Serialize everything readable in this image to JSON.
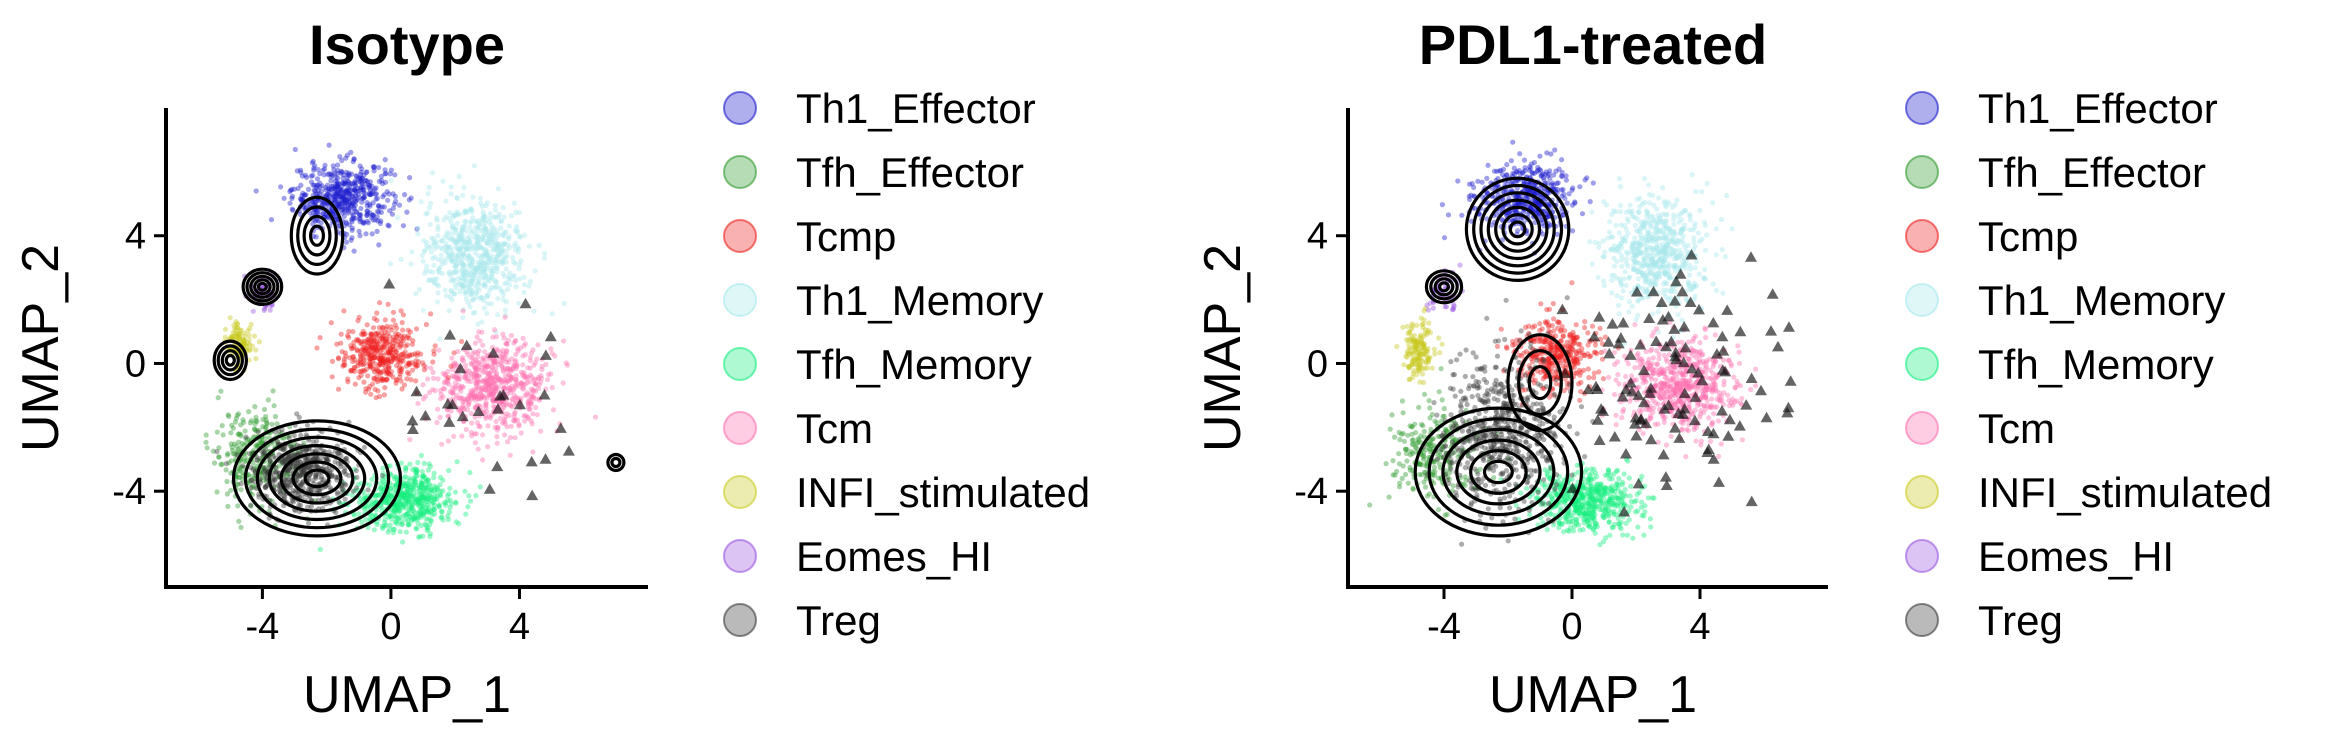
{
  "chart_data": [
    {
      "type": "scatter",
      "title": "Isotype",
      "xlabel": "UMAP_1",
      "ylabel": "UMAP_2",
      "xlim": [
        -7,
        8
      ],
      "ylim": [
        -7,
        8
      ],
      "x_ticks": [
        -4,
        0,
        4
      ],
      "y_ticks": [
        -4,
        0,
        4
      ],
      "legend_position": "right",
      "overlay": "density-contours",
      "categories": [
        "Th1_Effector",
        "Tfh_Effector",
        "Tcmp",
        "Th1_Memory",
        "Tfh_Memory",
        "Tcm",
        "INFI_stimulated",
        "Eomes_HI",
        "Treg"
      ],
      "clusters": [
        {
          "name": "Th1_Effector",
          "center": [
            -1.5,
            5.2
          ],
          "spread": [
            1.4,
            1.0
          ],
          "n": 520
        },
        {
          "name": "Th1_Memory",
          "center": [
            2.6,
            3.4
          ],
          "spread": [
            1.5,
            1.6
          ],
          "n": 620
        },
        {
          "name": "Tcm",
          "center": [
            3.2,
            -0.7
          ],
          "spread": [
            1.6,
            1.3
          ],
          "n": 640
        },
        {
          "name": "Tcmp",
          "center": [
            -0.3,
            0.3
          ],
          "spread": [
            1.2,
            1.0
          ],
          "n": 400
        },
        {
          "name": "Tfh_Memory",
          "center": [
            0.4,
            -4.3
          ],
          "spread": [
            1.5,
            0.9
          ],
          "n": 560
        },
        {
          "name": "Tfh_Effector",
          "center": [
            -4.2,
            -2.8
          ],
          "spread": [
            1.2,
            1.2
          ],
          "n": 300
        },
        {
          "name": "INFI_stimulated",
          "center": [
            -4.7,
            0.6
          ],
          "spread": [
            0.4,
            0.6
          ],
          "n": 120
        },
        {
          "name": "Eomes_HI",
          "center": [
            -4.0,
            2.2
          ],
          "spread": [
            0.5,
            0.5
          ],
          "n": 60
        },
        {
          "name": "Treg",
          "center": [
            -2.8,
            -3.4
          ],
          "spread": [
            1.4,
            1.1
          ],
          "n": 560
        }
      ],
      "contour_peaks": [
        {
          "center": [
            -2.3,
            -3.6
          ],
          "radii": [
            2.6,
            1.8
          ],
          "levels": 7
        },
        {
          "center": [
            -4.0,
            2.4
          ],
          "radii": [
            0.6,
            0.55
          ],
          "levels": 5
        },
        {
          "center": [
            -5.0,
            0.1
          ],
          "radii": [
            0.5,
            0.6
          ],
          "levels": 4
        },
        {
          "center": [
            -2.3,
            4.0
          ],
          "radii": [
            0.8,
            1.2
          ],
          "levels": 4
        },
        {
          "center": [
            7.0,
            -3.1
          ],
          "radii": [
            0.25,
            0.25
          ],
          "levels": 2
        }
      ]
    },
    {
      "type": "scatter",
      "title": "PDL1-treated",
      "xlabel": "UMAP_1",
      "ylabel": "UMAP_2",
      "xlim": [
        -7,
        8
      ],
      "ylim": [
        -7,
        8
      ],
      "x_ticks": [
        -4,
        0,
        4
      ],
      "y_ticks": [
        -4,
        0,
        4
      ],
      "legend_position": "right",
      "overlay": "density-contours",
      "categories": [
        "Th1_Effector",
        "Tfh_Effector",
        "Tcmp",
        "Th1_Memory",
        "Tfh_Memory",
        "Tcm",
        "INFI_stimulated",
        "Eomes_HI",
        "Treg"
      ],
      "clusters": [
        {
          "name": "Th1_Effector",
          "center": [
            -1.5,
            5.2
          ],
          "spread": [
            1.4,
            1.0
          ],
          "n": 480
        },
        {
          "name": "Th1_Memory",
          "center": [
            2.6,
            3.4
          ],
          "spread": [
            1.5,
            1.6
          ],
          "n": 600
        },
        {
          "name": "Tcm",
          "center": [
            3.3,
            -0.7
          ],
          "spread": [
            1.6,
            1.3
          ],
          "n": 640
        },
        {
          "name": "Tcmp",
          "center": [
            -0.5,
            0.3
          ],
          "spread": [
            1.2,
            1.0
          ],
          "n": 380
        },
        {
          "name": "Tfh_Memory",
          "center": [
            0.4,
            -4.3
          ],
          "spread": [
            1.5,
            0.9
          ],
          "n": 540
        },
        {
          "name": "Tfh_Effector",
          "center": [
            -4.2,
            -2.8
          ],
          "spread": [
            1.2,
            1.2
          ],
          "n": 260
        },
        {
          "name": "INFI_stimulated",
          "center": [
            -4.8,
            0.4
          ],
          "spread": [
            0.4,
            0.8
          ],
          "n": 150
        },
        {
          "name": "Eomes_HI",
          "center": [
            -4.0,
            2.2
          ],
          "spread": [
            0.5,
            0.5
          ],
          "n": 60
        },
        {
          "name": "Treg",
          "center": [
            -2.2,
            -2.2
          ],
          "spread": [
            1.8,
            2.2
          ],
          "n": 640
        }
      ],
      "contour_peaks": [
        {
          "center": [
            -1.7,
            4.2
          ],
          "radii": [
            1.6,
            1.6
          ],
          "levels": 7
        },
        {
          "center": [
            -2.3,
            -3.4
          ],
          "radii": [
            2.6,
            2.0
          ],
          "levels": 6
        },
        {
          "center": [
            -4.0,
            2.4
          ],
          "radii": [
            0.55,
            0.5
          ],
          "levels": 4
        },
        {
          "center": [
            -1.0,
            -0.6
          ],
          "radii": [
            1.0,
            1.5
          ],
          "levels": 3
        }
      ]
    }
  ],
  "legend": {
    "items": [
      {
        "label": "Th1_Effector",
        "color": "#1a1acc"
      },
      {
        "label": "Tfh_Effector",
        "color": "#2e9a2e"
      },
      {
        "label": "Tcmp",
        "color": "#ee2020"
      },
      {
        "label": "Th1_Memory",
        "color": "#a6e8ec"
      },
      {
        "label": "Tfh_Memory",
        "color": "#16ee7e"
      },
      {
        "label": "Tcm",
        "color": "#ff6fb0"
      },
      {
        "label": "INFI_stimulated",
        "color": "#c9c91e"
      },
      {
        "label": "Eomes_HI",
        "color": "#9a55e0"
      },
      {
        "label": "Treg",
        "color": "#3a3a3a"
      }
    ]
  }
}
